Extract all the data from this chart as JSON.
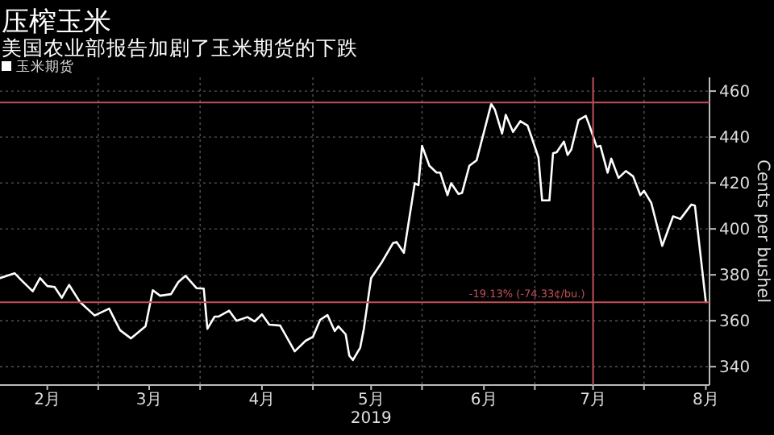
{
  "chart_data": {
    "type": "line",
    "title": "压榨玉米",
    "subtitle": "美国农业部报告加剧了玉米期货的下跌",
    "ylabel": "Cents per bushel",
    "x": [
      "2019-01-19",
      "2019-01-23",
      "2019-01-25",
      "2019-01-28",
      "2019-01-30",
      "2019-02-01",
      "2019-02-03",
      "2019-02-05",
      "2019-02-07",
      "2019-02-10",
      "2019-02-14",
      "2019-02-18",
      "2019-02-21",
      "2019-02-24",
      "2019-02-28",
      "2019-03-02",
      "2019-03-04",
      "2019-03-07",
      "2019-03-09",
      "2019-03-11",
      "2019-03-14",
      "2019-03-16",
      "2019-03-17",
      "2019-03-19",
      "2019-03-20",
      "2019-03-23",
      "2019-03-25",
      "2019-03-28",
      "2019-03-30",
      "2019-04-01",
      "2019-04-03",
      "2019-04-06",
      "2019-04-10",
      "2019-04-13",
      "2019-04-15",
      "2019-04-17",
      "2019-04-19",
      "2019-04-21",
      "2019-04-22",
      "2019-04-24",
      "2019-04-25",
      "2019-04-26",
      "2019-04-28",
      "2019-04-29",
      "2019-05-01",
      "2019-05-04",
      "2019-05-07",
      "2019-05-08",
      "2019-05-10",
      "2019-05-13",
      "2019-05-14",
      "2019-05-15",
      "2019-05-17",
      "2019-05-19",
      "2019-05-20",
      "2019-05-22",
      "2019-05-23",
      "2019-05-25",
      "2019-05-26",
      "2019-05-28",
      "2019-05-30",
      "2019-06-03",
      "2019-06-04",
      "2019-06-06",
      "2019-06-07",
      "2019-06-09",
      "2019-06-11",
      "2019-06-13",
      "2019-06-14",
      "2019-06-16",
      "2019-06-17",
      "2019-06-19",
      "2019-06-20",
      "2019-06-21",
      "2019-06-23",
      "2019-06-24",
      "2019-06-25",
      "2019-06-27",
      "2019-06-29",
      "2019-06-30",
      "2019-07-02",
      "2019-07-03",
      "2019-07-05",
      "2019-07-06",
      "2019-07-08",
      "2019-07-10",
      "2019-07-12",
      "2019-07-14",
      "2019-07-15",
      "2019-07-17",
      "2019-07-20",
      "2019-07-23",
      "2019-07-25",
      "2019-07-28",
      "2019-07-29",
      "2019-08-01"
    ],
    "series": [
      {
        "name": "玉米期货",
        "color": "#ffffff",
        "values": [
          378.6,
          380.7,
          377.5,
          372.8,
          378.6,
          375.1,
          374.7,
          370,
          375.6,
          368.1,
          362.3,
          365.3,
          355.9,
          352.3,
          357.6,
          373.3,
          370.9,
          371.6,
          376.8,
          379.6,
          374.2,
          374,
          356.5,
          361.8,
          361.8,
          364.4,
          360,
          361.6,
          359.7,
          362.8,
          358.3,
          357.9,
          346.7,
          351.3,
          353,
          360.4,
          362.5,
          355.5,
          357.6,
          354.1,
          344.8,
          342.9,
          348.3,
          356.5,
          378.6,
          385.6,
          393.8,
          394.3,
          389.6,
          419.9,
          419,
          436.2,
          427.5,
          424.5,
          424.5,
          414.7,
          419.9,
          415.2,
          415.7,
          427.5,
          429.9,
          454.4,
          452,
          441.5,
          449.7,
          442.2,
          446.9,
          445,
          440.4,
          431,
          412.4,
          412.4,
          432.9,
          433.4,
          438,
          432.2,
          434.5,
          447.4,
          449.2,
          445,
          435.7,
          436.2,
          424.5,
          430.6,
          422.2,
          425.2,
          422.9,
          414.7,
          416.6,
          411.3,
          392.6,
          405.5,
          404.3,
          410.6,
          410.1,
          368.1
        ]
      }
    ],
    "xlim": [
      "2019-01-19",
      "2019-08-02"
    ],
    "xticks": [
      {
        "value": "2019-02-01",
        "label": "2月"
      },
      {
        "value": "2019-02-15",
        "label": null
      },
      {
        "value": "2019-03-01",
        "label": "3月"
      },
      {
        "value": "2019-03-15",
        "label": null
      },
      {
        "value": "2019-04-01",
        "label": "4月"
      },
      {
        "value": "2019-04-15",
        "label": null
      },
      {
        "value": "2019-05-01",
        "label": "5月\n2019"
      },
      {
        "value": "2019-05-15",
        "label": null
      },
      {
        "value": "2019-06-01",
        "label": "6月"
      },
      {
        "value": "2019-06-15",
        "label": null
      },
      {
        "value": "2019-07-01",
        "label": "7月"
      },
      {
        "value": "2019-07-15",
        "label": null
      },
      {
        "value": "2019-08-01",
        "label": "8月"
      }
    ],
    "ylim": [
      332,
      466
    ],
    "yticks": [
      340,
      360,
      380,
      400,
      420,
      440,
      460
    ],
    "ref_lines": [
      {
        "axis": "y",
        "value": 455,
        "color": "#c0505a"
      },
      {
        "axis": "y",
        "value": 368,
        "color": "#c0505a",
        "label": "-19.13% (-74.33¢/bu.)"
      },
      {
        "axis": "x",
        "value": "2019-07-01",
        "color": "#c0505a"
      }
    ],
    "grid": true,
    "legend": "top left",
    "line_style": "solid"
  }
}
